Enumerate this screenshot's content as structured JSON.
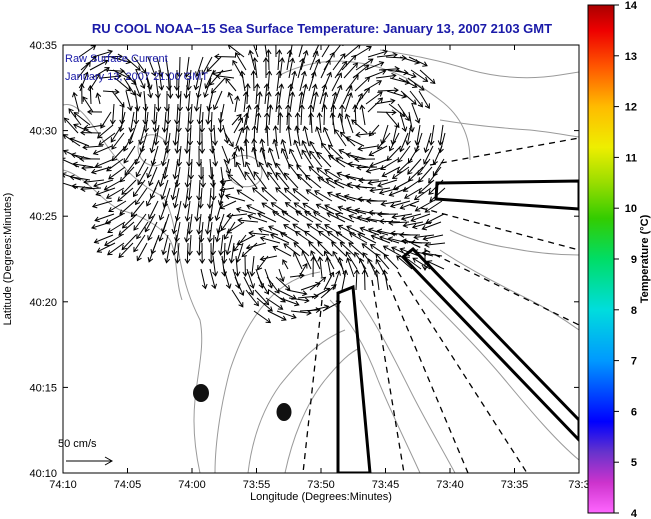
{
  "title": "RU COOL  NOAA−15  Sea Surface Temperature:  January 13, 2007 2103 GMT",
  "overlay": {
    "line1": "Raw Surface Current",
    "line2": "January 13, 2007 21:00 GMT"
  },
  "scale": {
    "label": "50 cm/s"
  },
  "axes": {
    "xlabel": "Longitude (Degrees:Minutes)",
    "ylabel": "Latitude (Degrees:Minutes)",
    "xticks": [
      "74:10",
      "74:05",
      "74:00",
      "73:55",
      "73:50",
      "73:45",
      "73:40",
      "73:35",
      "73:3"
    ],
    "yticks": [
      "40:35",
      "40:30",
      "40:25",
      "40:20",
      "40:15",
      "40:10"
    ]
  },
  "colorbar": {
    "label": "Temperature (°C)",
    "min": 4,
    "max": 14,
    "ticks": [
      "14",
      "13",
      "12",
      "11",
      "10",
      "9",
      "8",
      "7",
      "6",
      "5",
      "4"
    ]
  },
  "markers": [
    {
      "name": "dark-buoy-marker-1",
      "lon": "73:58.8",
      "lat": "40:14.6"
    },
    {
      "name": "dark-buoy-marker-2",
      "lon": "73:52.5",
      "lat": "40:13.5"
    }
  ],
  "colors": {
    "title": "#1a1aa8",
    "frame": "#000000",
    "contour": "#9a9a9a"
  }
}
